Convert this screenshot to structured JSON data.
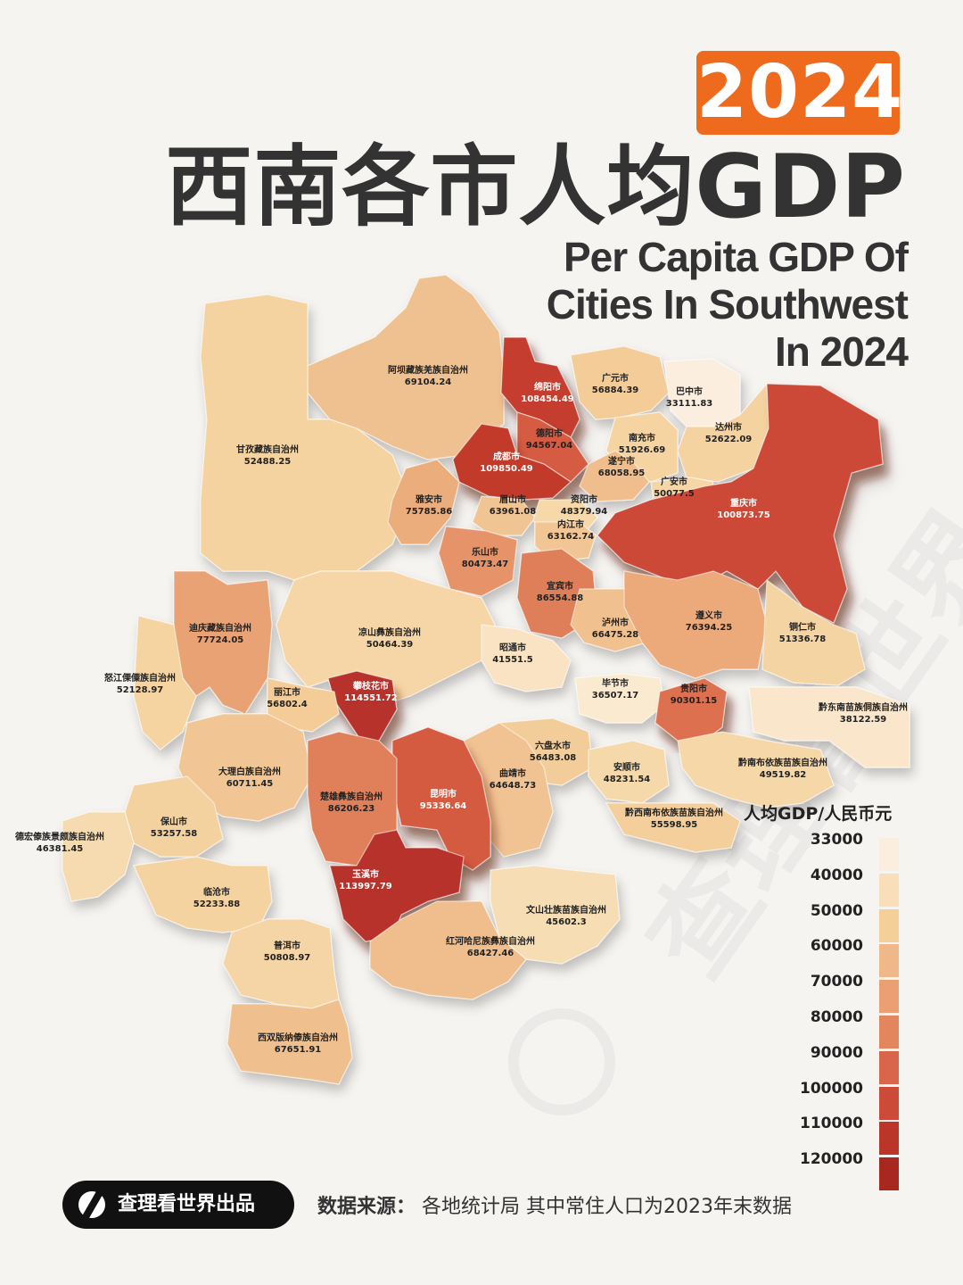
{
  "year": "2024",
  "title_cn": "西南各市人均GDP",
  "title_en": [
    "Per Capita GDP Of",
    "Cities In Southwest",
    "In 2024"
  ],
  "legend": {
    "title": "人均GDP/人民币元",
    "items": [
      {
        "label": "33000",
        "color": "#fbeede"
      },
      {
        "label": "40000",
        "color": "#f8dfba"
      },
      {
        "label": "50000",
        "color": "#f4cf98"
      },
      {
        "label": "60000",
        "color": "#f0b888"
      },
      {
        "label": "70000",
        "color": "#eb9f73"
      },
      {
        "label": "80000",
        "color": "#e3865e"
      },
      {
        "label": "90000",
        "color": "#d9664a"
      },
      {
        "label": "100000",
        "color": "#cc4a38"
      },
      {
        "label": "110000",
        "color": "#bb3529"
      },
      {
        "label": "120000",
        "color": "#a8271f"
      }
    ]
  },
  "regions": [
    {
      "name": "阿坝藏族羌族自治州",
      "value": "69104.24",
      "color": "#f0c190"
    },
    {
      "name": "绵阳市",
      "value": "108454.49",
      "color": "#c43e2e"
    },
    {
      "name": "广元市",
      "value": "56884.39",
      "color": "#f3cc98"
    },
    {
      "name": "巴中市",
      "value": "33111.83",
      "color": "#fbeedf"
    },
    {
      "name": "德阳市",
      "value": "94567.04",
      "color": "#d55b42"
    },
    {
      "name": "南充市",
      "value": "51926.69",
      "color": "#f5d4a2"
    },
    {
      "name": "达州市",
      "value": "52622.09",
      "color": "#f5d3a0"
    },
    {
      "name": "甘孜藏族自治州",
      "value": "52488.25",
      "color": "#f5d3a0"
    },
    {
      "name": "成都市",
      "value": "109850.49",
      "color": "#c23b2c"
    },
    {
      "name": "遂宁市",
      "value": "68058.95",
      "color": "#f0bd8c"
    },
    {
      "name": "广安市",
      "value": "50077.5",
      "color": "#f6d6a6"
    },
    {
      "name": "雅安市",
      "value": "75785.86",
      "color": "#ecad7c"
    },
    {
      "name": "眉山市",
      "value": "63961.08",
      "color": "#f1c493"
    },
    {
      "name": "资阳市",
      "value": "48379.94",
      "color": "#f6d8a9"
    },
    {
      "name": "重庆市",
      "value": "100873.75",
      "color": "#cc4a38"
    },
    {
      "name": "内江市",
      "value": "63162.74",
      "color": "#f2c594"
    },
    {
      "name": "乐山市",
      "value": "80473.47",
      "color": "#e6936a"
    },
    {
      "name": "宜宾市",
      "value": "86554.88",
      "color": "#df7f5a"
    },
    {
      "name": "迪庆藏族自治州",
      "value": "77724.05",
      "color": "#e9a273"
    },
    {
      "name": "凉山彝族自治州",
      "value": "50464.39",
      "color": "#f6d6a6"
    },
    {
      "name": "泸州市",
      "value": "66475.28",
      "color": "#f0c08e"
    },
    {
      "name": "遵义市",
      "value": "76394.25",
      "color": "#eca97a"
    },
    {
      "name": "铜仁市",
      "value": "51336.78",
      "color": "#f5d4a3"
    },
    {
      "name": "昭通市",
      "value": "41551.5",
      "color": "#f9e3c2"
    },
    {
      "name": "怒江傈僳族自治州",
      "value": "52128.97",
      "color": "#f5d4a2"
    },
    {
      "name": "攀枝花市",
      "value": "114551.72",
      "color": "#b6302a"
    },
    {
      "name": "丽江市",
      "value": "56802.4",
      "color": "#f3cc98"
    },
    {
      "name": "毕节市",
      "value": "36507.17",
      "color": "#faeacf"
    },
    {
      "name": "贵阳市",
      "value": "90301.15",
      "color": "#dc6f4f"
    },
    {
      "name": "黔东南苗族侗族自治州",
      "value": "38122.59",
      "color": "#fae7cb"
    },
    {
      "name": "六盘水市",
      "value": "56483.08",
      "color": "#f3cd99"
    },
    {
      "name": "大理白族自治州",
      "value": "60711.45",
      "color": "#f2c694"
    },
    {
      "name": "安顺市",
      "value": "48231.54",
      "color": "#f6d9aa"
    },
    {
      "name": "黔南布依族苗族自治州",
      "value": "49519.82",
      "color": "#f6d7a8"
    },
    {
      "name": "曲靖市",
      "value": "64648.73",
      "color": "#f1c392"
    },
    {
      "name": "昆明市",
      "value": "95336.64",
      "color": "#d45a41"
    },
    {
      "name": "楚雄彝族自治州",
      "value": "86206.23",
      "color": "#df805a"
    },
    {
      "name": "黔西南布依族苗族自治州",
      "value": "55598.95",
      "color": "#f4cf9b"
    },
    {
      "name": "保山市",
      "value": "53257.58",
      "color": "#f4d2a0"
    },
    {
      "name": "德宏傣族景颇族自治州",
      "value": "46381.45",
      "color": "#f7dbb0"
    },
    {
      "name": "玉溪市",
      "value": "113997.79",
      "color": "#b7322a"
    },
    {
      "name": "临沧市",
      "value": "52233.88",
      "color": "#f5d3a1"
    },
    {
      "name": "文山壮族苗族自治州",
      "value": "45602.3",
      "color": "#f7ddb3"
    },
    {
      "name": "普洱市",
      "value": "50808.97",
      "color": "#f5d5a5"
    },
    {
      "name": "红河哈尼族彝族自治州",
      "value": "68427.46",
      "color": "#f0be8d"
    },
    {
      "name": "西双版纳傣族自治州",
      "value": "67651.91",
      "color": "#f0bf8e"
    }
  ],
  "footer": {
    "brand": "查理看世界出品",
    "source_label": "数据来源：",
    "source_text": "各地统计局  其中常住人口为2023年末数据"
  },
  "watermark": "查理看世界",
  "icons": {
    "brand_logo": "charlie-logo-icon"
  }
}
